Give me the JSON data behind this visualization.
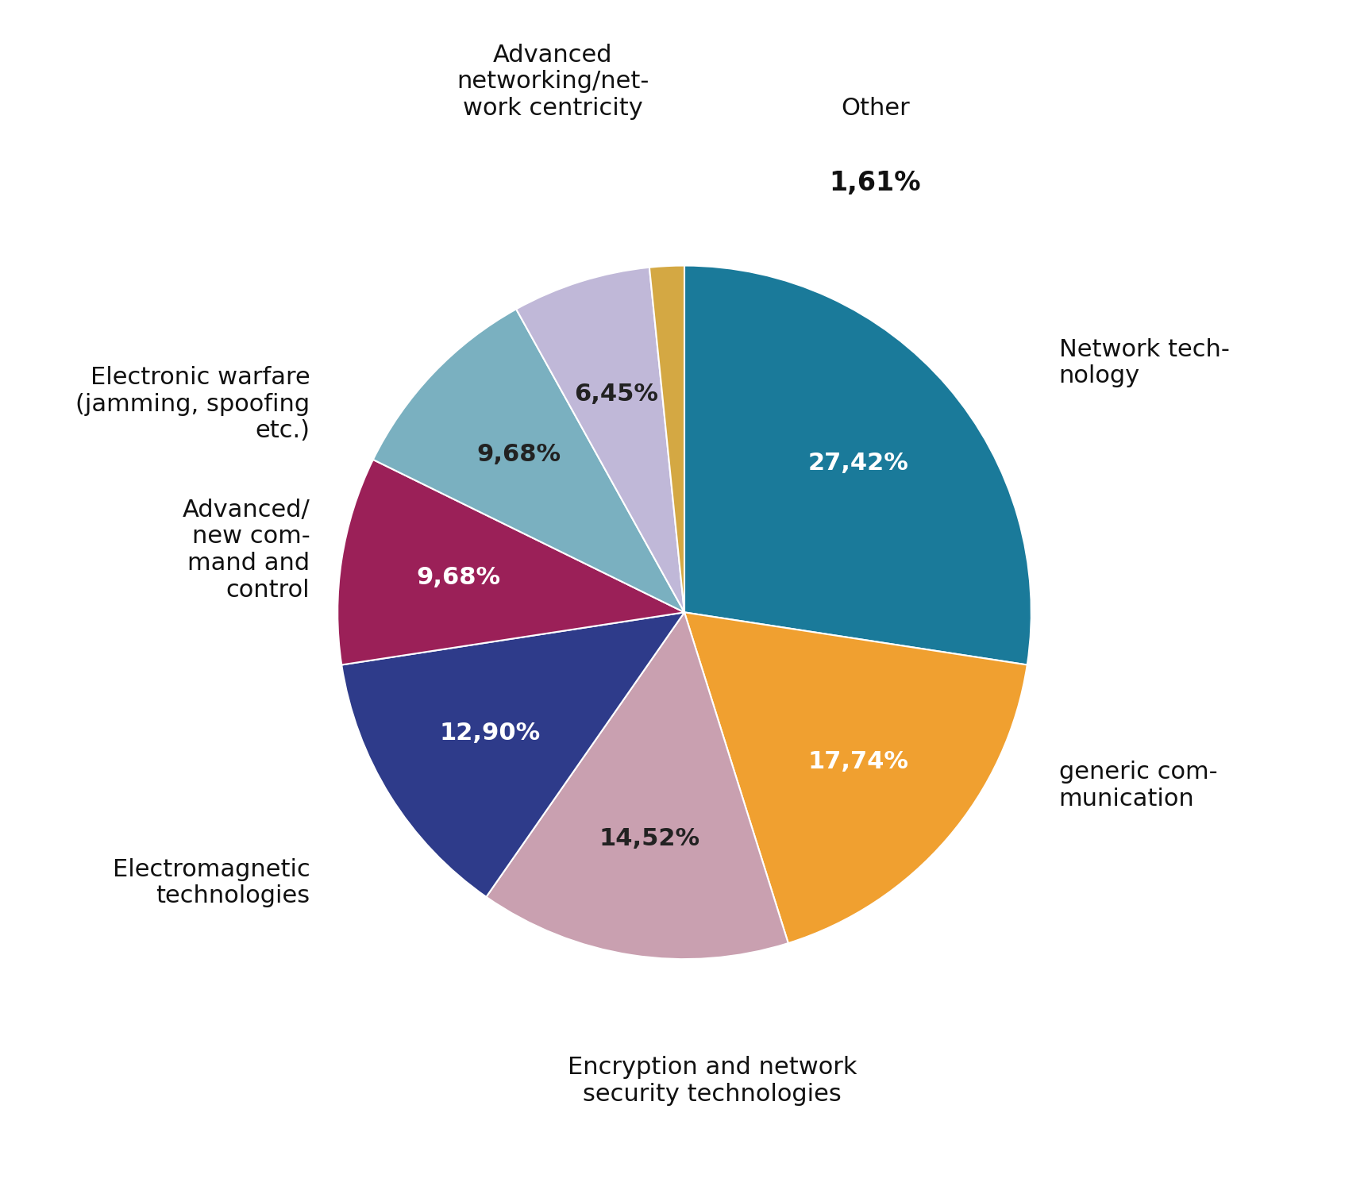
{
  "slices": [
    {
      "label": "Network tech-\nnology",
      "pct_label": "27,42%",
      "value": 27.42,
      "color": "#1a7a9a",
      "text_color": "white"
    },
    {
      "label": "generic com-\nmunication",
      "pct_label": "17,74%",
      "value": 17.74,
      "color": "#f0a030",
      "text_color": "white"
    },
    {
      "label": "Encryption and network\nsecurity technologies",
      "pct_label": "14,52%",
      "value": 14.52,
      "color": "#c9a0b0",
      "text_color": "#222222"
    },
    {
      "label": "Electromagnetic\ntechnologies",
      "pct_label": "12,90%",
      "value": 12.9,
      "color": "#2e3b8a",
      "text_color": "white"
    },
    {
      "label": "Advanced/\nnew com-\nmand and\ncontrol",
      "pct_label": "9,68%",
      "value": 9.68,
      "color": "#9b2058",
      "text_color": "white"
    },
    {
      "label": "Electronic warfare\n(jamming, spoofing\netc.)",
      "pct_label": "9,68%",
      "value": 9.68,
      "color": "#7ab0c0",
      "text_color": "#222222"
    },
    {
      "label": "Advanced\nnetworking/net-\nwork centricity",
      "pct_label": "6,45%",
      "value": 6.45,
      "color": "#c0b8d8",
      "text_color": "#222222"
    },
    {
      "label": "Other",
      "pct_label": "1,61%",
      "value": 1.61,
      "color": "#d4a843",
      "text_color": "#222222"
    }
  ],
  "figsize": [
    17.24,
    14.99
  ],
  "dpi": 100,
  "start_angle": 90,
  "background_color": "#ffffff",
  "label_fontsize": 22,
  "pct_fontsize_inside": 22,
  "pct_fontsize_outside": 24
}
